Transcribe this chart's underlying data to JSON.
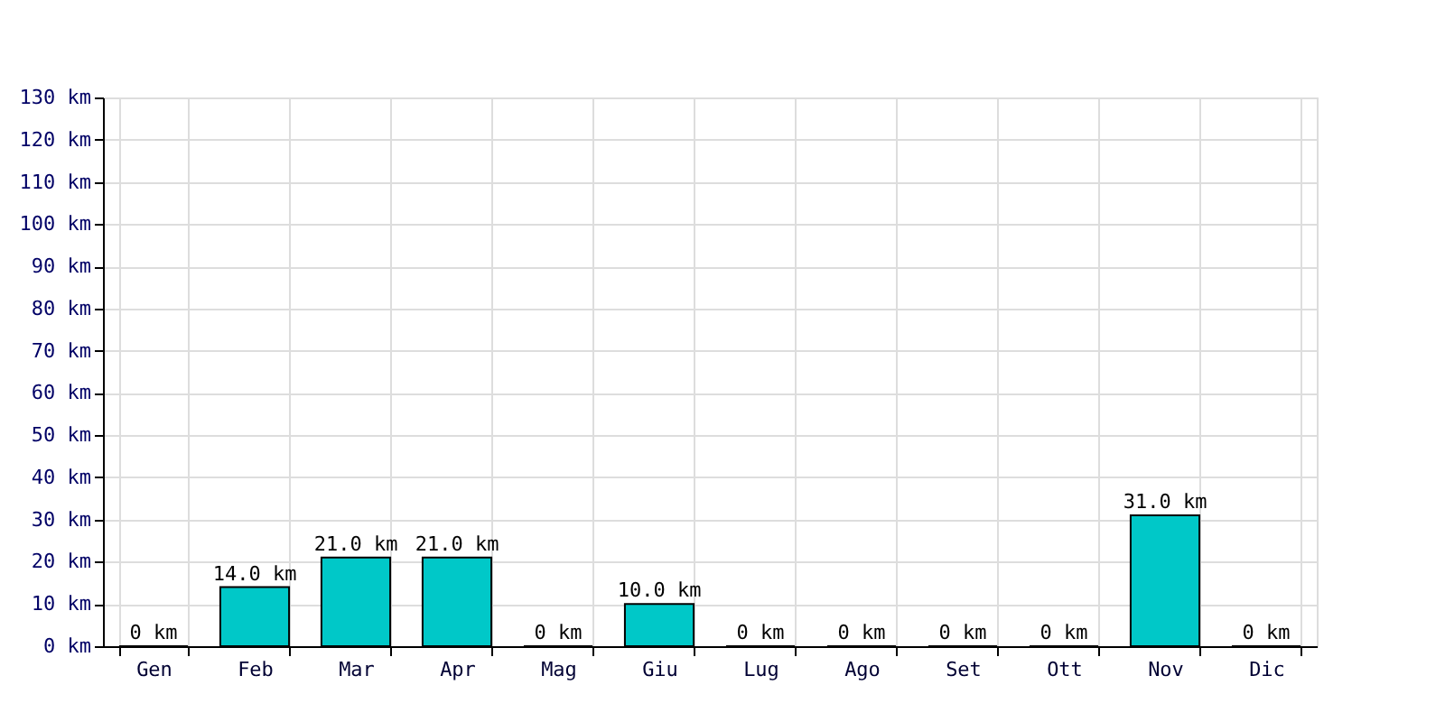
{
  "chart_data": {
    "type": "bar",
    "categories": [
      "Gen",
      "Feb",
      "Mar",
      "Apr",
      "Mag",
      "Giu",
      "Lug",
      "Ago",
      "Set",
      "Ott",
      "Nov",
      "Dic"
    ],
    "values": [
      0,
      14,
      21,
      21,
      0,
      10,
      0,
      0,
      0,
      0,
      31,
      0
    ],
    "value_labels": [
      "0 km",
      "14.0 km",
      "21.0 km",
      "21.0 km",
      "0 km",
      "10.0 km",
      "0 km",
      "0 km",
      "0 km",
      "0 km",
      "31.0 km",
      "0 km"
    ],
    "color": "#00c8c8",
    "ylim": [
      0,
      130
    ],
    "yticks": [
      {
        "value": 0,
        "label": "0 km"
      },
      {
        "value": 10,
        "label": "10 km"
      },
      {
        "value": 20,
        "label": "20 km"
      },
      {
        "value": 30,
        "label": "30 km"
      },
      {
        "value": 40,
        "label": "40 km"
      },
      {
        "value": 50,
        "label": "50 km"
      },
      {
        "value": 60,
        "label": "60 km"
      },
      {
        "value": 70,
        "label": "70 km"
      },
      {
        "value": 80,
        "label": "80 km"
      },
      {
        "value": 90,
        "label": "90 km"
      },
      {
        "value": 100,
        "label": "100 km"
      },
      {
        "value": 110,
        "label": "110 km"
      },
      {
        "value": 120,
        "label": "120 km"
      },
      {
        "value": 130,
        "label": "130 km"
      }
    ],
    "grid": true
  }
}
